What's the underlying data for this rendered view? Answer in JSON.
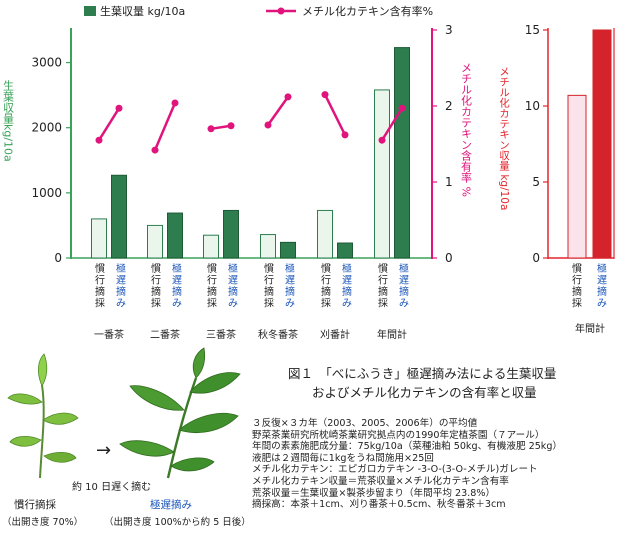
{
  "chart_data": [
    {
      "type": "bar+line",
      "legend": {
        "bar": "生葉収量 kg/10a",
        "line": "メチル化カテキン含有率%"
      },
      "ylabel_left": "生葉収量kg/10a",
      "ylabel_right": "メチル化カテキン含有率 %",
      "ylim_left": [
        0,
        3500
      ],
      "yticks_left": [
        "0",
        "1000",
        "2000",
        "3000"
      ],
      "ylim_right": [
        0,
        3
      ],
      "yticks_right": [
        "0",
        "1",
        "2",
        "3"
      ],
      "methods": [
        "慣行摘採",
        "極遅摘み"
      ],
      "groups": [
        "一番茶",
        "二番茶",
        "三番茶",
        "秋冬番茶",
        "刈番計",
        "年間計"
      ],
      "series": [
        {
          "name": "慣行摘採",
          "yield": [
            600,
            500,
            350,
            360,
            730,
            2580
          ]
        },
        {
          "name": "極遅摘み",
          "yield": [
            1270,
            690,
            730,
            240,
            230,
            3230
          ]
        }
      ],
      "catechin": [
        [
          1.55,
          1.97
        ],
        [
          1.42,
          2.04
        ],
        [
          1.7,
          1.74
        ],
        [
          1.75,
          2.12
        ],
        [
          2.15,
          1.62
        ],
        [
          1.55,
          1.97
        ]
      ],
      "grid": false
    },
    {
      "type": "bar",
      "ylabel": "メチル化カテキン収量 kg/10a",
      "ylim": [
        0,
        15
      ],
      "yticks": [
        "0",
        "5",
        "10",
        "15"
      ],
      "categories": [
        "慣行摘採",
        "極遅摘み"
      ],
      "group_label": "年間計",
      "values": [
        10.7,
        15.0
      ],
      "grid": false
    }
  ],
  "figure": {
    "title_line1": "図１　「べにふうき」極遅摘み法による生葉収量",
    "title_line2": "およびメチル化カテキンの含有率と収量",
    "arrow": "→",
    "arrow_note": "約 10 日遅く摘む",
    "left_leaf_label": "慣行摘採",
    "left_leaf_sub": "（出開き度 70%）",
    "right_leaf_label": "極遅摘み",
    "right_leaf_sub": "（出開き度 100%から約 5 日後）",
    "notes": [
      "３反復×３カ年（2003、2005、2006年）の平均値",
      "野菜茶業研究所枕崎茶業研究拠点内の1990年定植茶園（７アール）",
      "年間の素素施肥成分量：75kg/10a（菜種油粕 50kg、有機液肥 25kg）",
      "液肥は２週間毎に1kgをうね間施用×25回",
      "メチル化カテキン：エピガロカテキン -3-O-(3-O-メチル)ガレート",
      "メチル化カテキン収量＝荒茶収量×メチル化カテキン含有率",
      "荒茶収量＝生葉収量×製茶歩留まり（年間平均 23.8%）",
      "摘採高：本茶＋1cm、刈り番茶＋0.5cm、秋冬番茶＋3cm"
    ]
  },
  "colors": {
    "bar_light": "#eaf6ec",
    "bar_dark": "#2e7d4f",
    "catechin_line": "#e0147c",
    "axis_green": "#3aa35a",
    "axis_pink": "#e0147c",
    "axis_red": "#e4262c",
    "bar_pink_light": "#fbe3ec",
    "bar_red": "#d4232a",
    "method_blue": "#1a55b8"
  }
}
